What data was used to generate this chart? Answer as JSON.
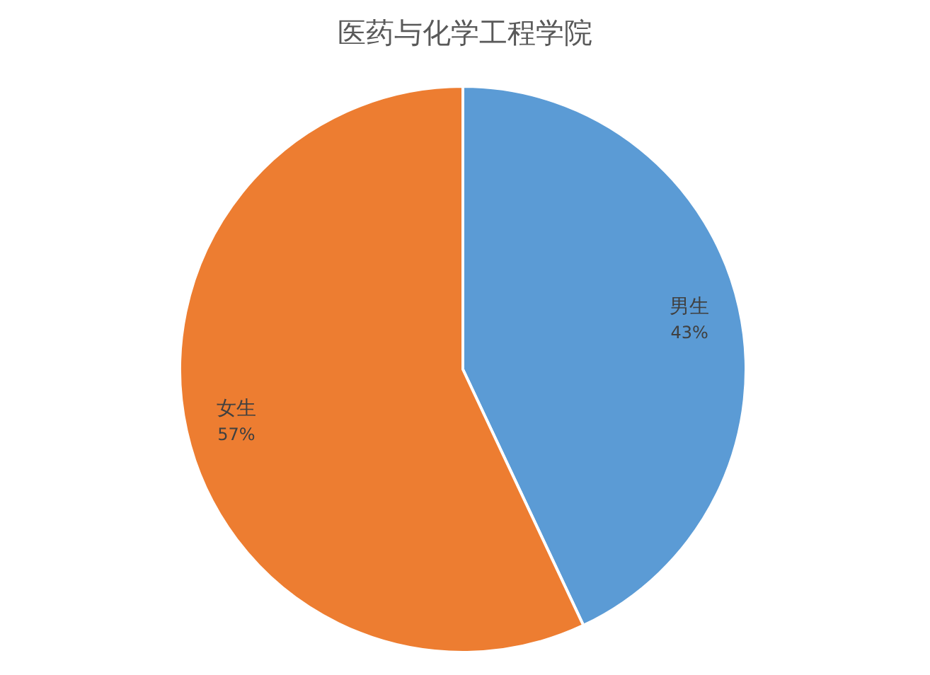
{
  "chart_data": {
    "type": "pie",
    "title": "医药与化学工程学院",
    "categories": [
      "男生",
      "女生"
    ],
    "values": [
      43,
      57
    ],
    "value_labels": [
      "43%",
      "57%"
    ],
    "colors": [
      "#5b9bd5",
      "#ed7d31"
    ]
  }
}
